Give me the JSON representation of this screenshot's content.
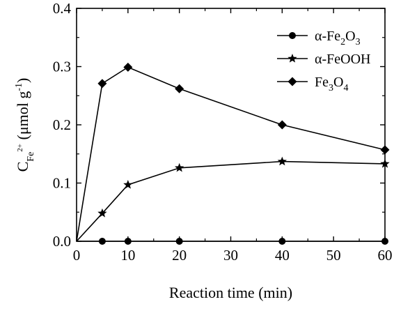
{
  "chart_data": {
    "type": "line",
    "xlabel": "Reaction time (min)",
    "ylabel": {
      "main": "C",
      "subscript": "Fe",
      "superscript": "2+",
      "unit_open": " (μmol g",
      "unit_exp": "-1",
      "unit_close": ")"
    },
    "xlim": [
      0,
      60
    ],
    "ylim": [
      0,
      0.4
    ],
    "xticks": [
      0,
      10,
      20,
      30,
      40,
      50,
      60
    ],
    "yticks": [
      0.0,
      0.1,
      0.2,
      0.3,
      0.4
    ],
    "ytick_labels": [
      "0.0",
      "0.1",
      "0.2",
      "0.3",
      "0.4"
    ],
    "grid": false,
    "legend_position": "top-right",
    "x": [
      0,
      5,
      10,
      20,
      40,
      60
    ],
    "series": [
      {
        "name": "α-Fe2O3",
        "label_parts": [
          [
            "α-Fe",
            ""
          ],
          [
            "2",
            "sub"
          ],
          [
            "O",
            ""
          ],
          [
            "3",
            "sub"
          ]
        ],
        "marker": "circle",
        "color": "#000000",
        "values": [
          0,
          0.0,
          0.0,
          0.0,
          0.0,
          0.0
        ]
      },
      {
        "name": "α-FeOOH",
        "label_parts": [
          [
            "α-FeOOH",
            ""
          ]
        ],
        "marker": "star",
        "color": "#000000",
        "values": [
          0,
          0.048,
          0.097,
          0.126,
          0.137,
          0.133
        ]
      },
      {
        "name": "Fe3O4",
        "label_parts": [
          [
            "Fe",
            ""
          ],
          [
            "3",
            "sub"
          ],
          [
            "O",
            ""
          ],
          [
            "4",
            "sub"
          ]
        ],
        "marker": "diamond",
        "color": "#000000",
        "values": [
          0,
          0.271,
          0.299,
          0.262,
          0.2,
          0.157
        ]
      }
    ]
  }
}
